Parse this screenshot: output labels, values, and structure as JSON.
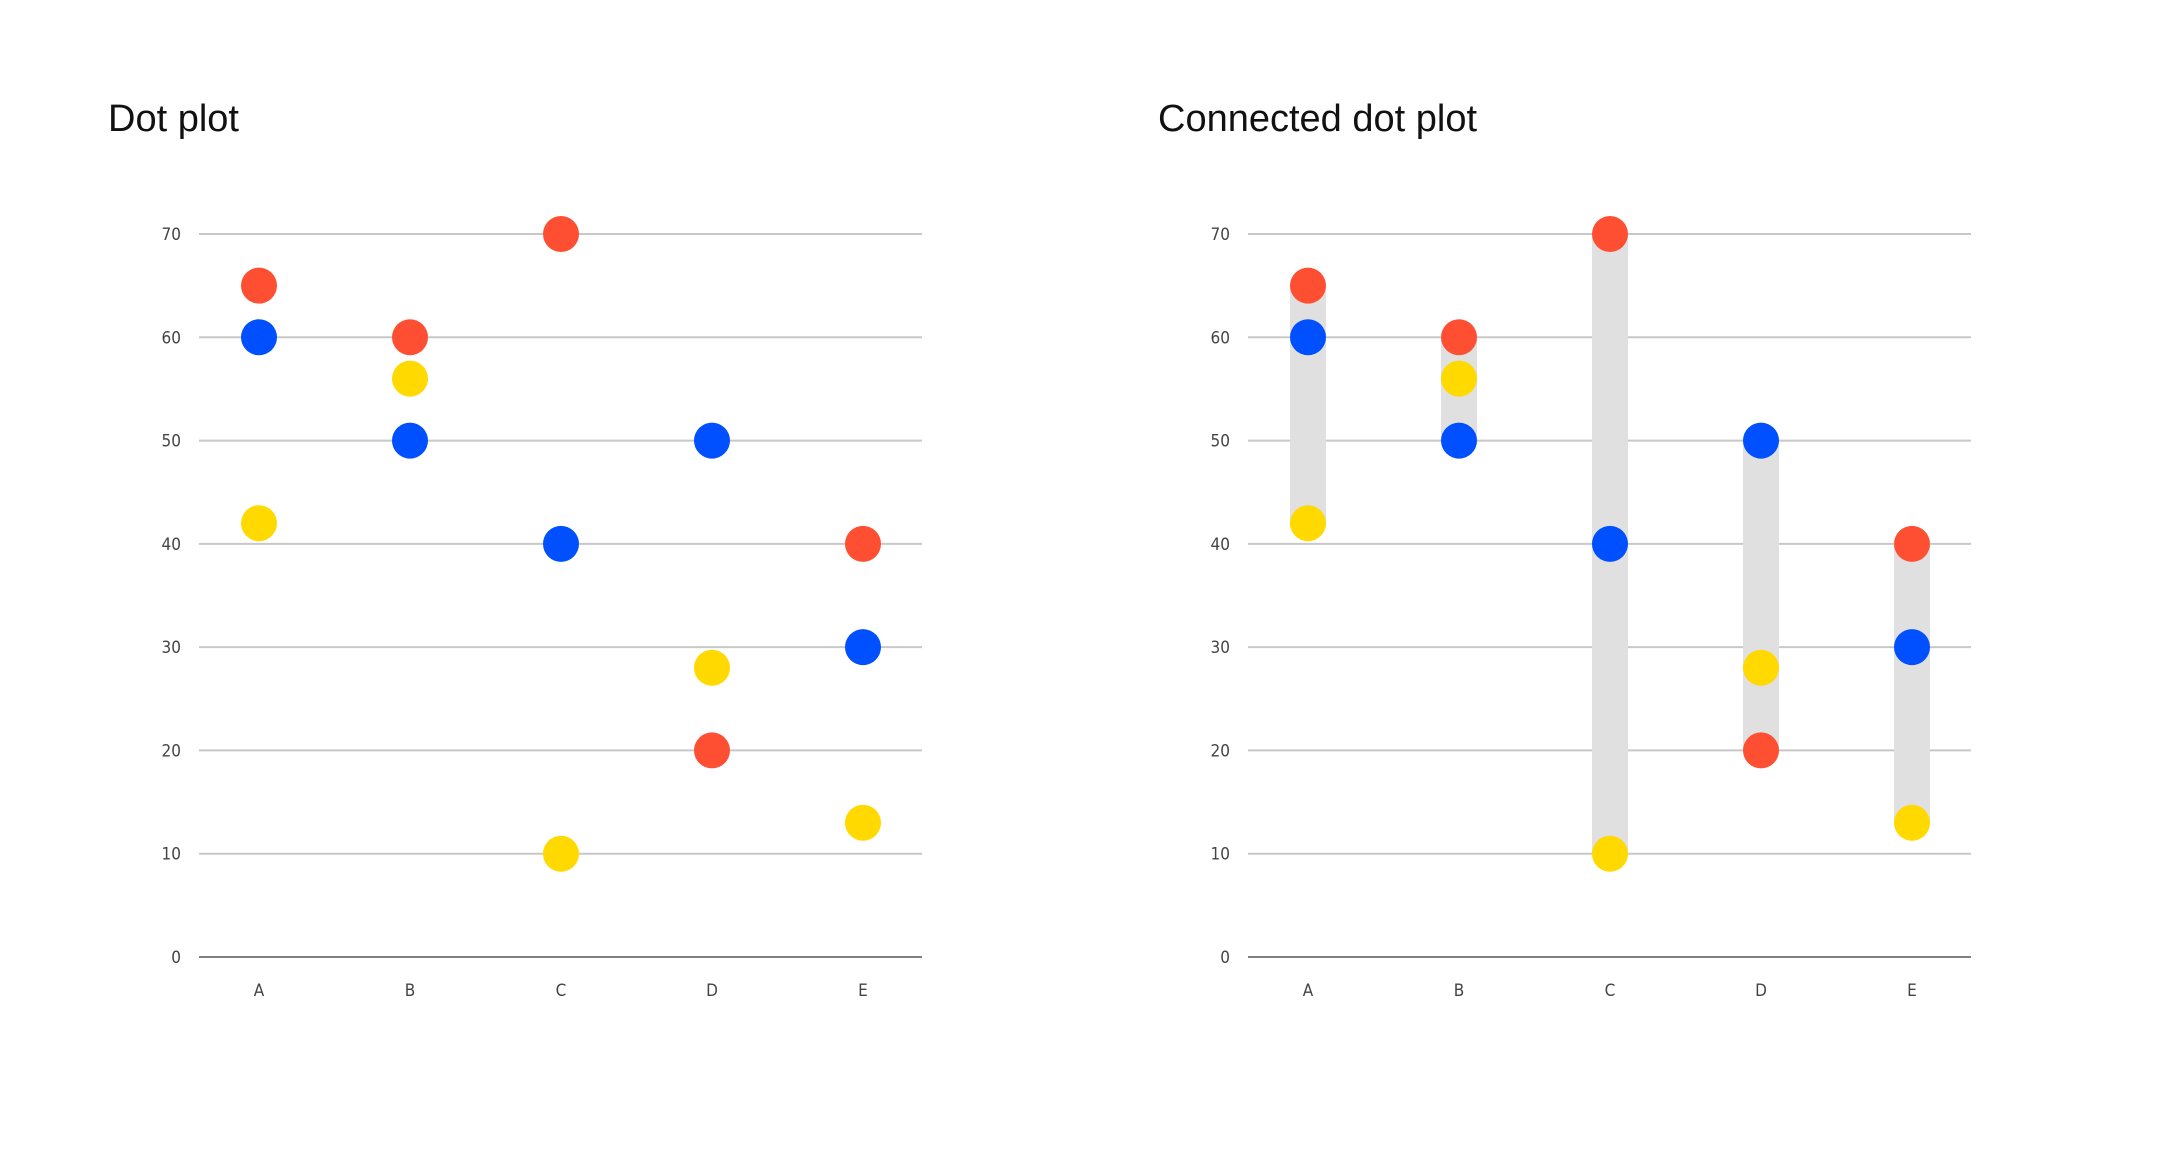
{
  "colors": {
    "red": "#FF4F33",
    "blue": "#0050FF",
    "yellow": "#FFD900",
    "bar": "#E0E0E0",
    "grid": "#C8C8C8",
    "axis": "#808080"
  },
  "chart_data": [
    {
      "type": "scatter",
      "title": "Dot plot",
      "categories": [
        "A",
        "B",
        "C",
        "D",
        "E"
      ],
      "yticks": [
        0,
        10,
        20,
        30,
        40,
        50,
        60,
        70
      ],
      "ylim": [
        0,
        70
      ],
      "grid": true,
      "connected": false,
      "series": [
        {
          "name": "red",
          "color": "#FF4F33",
          "values": [
            65,
            60,
            70,
            20,
            40
          ]
        },
        {
          "name": "blue",
          "color": "#0050FF",
          "values": [
            60,
            50,
            40,
            50,
            30
          ]
        },
        {
          "name": "yellow",
          "color": "#FFD900",
          "values": [
            42,
            56,
            10,
            28,
            13
          ]
        }
      ]
    },
    {
      "type": "scatter",
      "title": "Connected dot plot",
      "categories": [
        "A",
        "B",
        "C",
        "D",
        "E"
      ],
      "yticks": [
        0,
        10,
        20,
        30,
        40,
        50,
        60,
        70
      ],
      "ylim": [
        0,
        70
      ],
      "grid": true,
      "connected": true,
      "series": [
        {
          "name": "red",
          "color": "#FF4F33",
          "values": [
            65,
            60,
            70,
            20,
            40
          ]
        },
        {
          "name": "blue",
          "color": "#0050FF",
          "values": [
            60,
            50,
            40,
            50,
            30
          ]
        },
        {
          "name": "yellow",
          "color": "#FFD900",
          "values": [
            42,
            56,
            10,
            28,
            13
          ]
        }
      ]
    }
  ]
}
